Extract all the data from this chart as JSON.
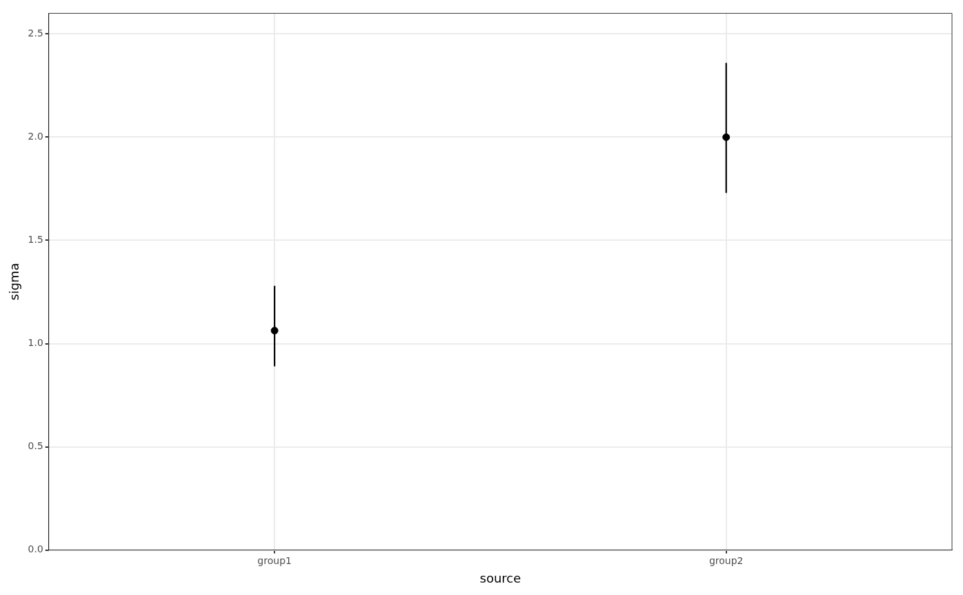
{
  "chart_data": {
    "type": "scatter",
    "xlabel": "source",
    "ylabel": "sigma",
    "categories": [
      "group1",
      "group2"
    ],
    "series": [
      {
        "color": "#000000",
        "values": [
          1.063,
          2.0
        ],
        "errors": [
          [
            0.89,
            1.28
          ],
          [
            1.73,
            2.36
          ]
        ]
      }
    ],
    "ylim": [
      0,
      2.6
    ],
    "yticks": [
      {
        "value": 0,
        "label": "0.0"
      },
      0.5,
      {
        "value": 1,
        "label": "1.0"
      },
      1.5,
      {
        "value": 2,
        "label": "2.0"
      },
      2.5
    ],
    "grid": true,
    "marker": "circle",
    "legend": false
  }
}
